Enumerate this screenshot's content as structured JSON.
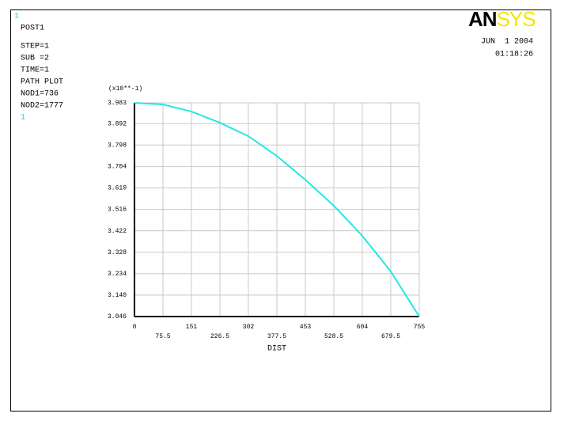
{
  "chart_data": {
    "type": "line",
    "window_labels": [
      "1",
      "1"
    ],
    "info_lines": [
      "POST1",
      "STEP=1",
      "SUB =2",
      "TIME=1",
      "PATH PLOT",
      "NOD1=736",
      "NOD2=1777"
    ],
    "logo": [
      "AN",
      "SYS"
    ],
    "date": "JUN  1 2004",
    "time": "01:18:26",
    "y_multiplier": "(x10**-1)",
    "x_label": "DIST",
    "x": [
      0,
      75.5,
      151,
      226.5,
      302,
      377.5,
      453,
      528.5,
      604,
      679.5,
      755
    ],
    "values": [
      3.983,
      3.976,
      3.945,
      3.896,
      3.837,
      3.75,
      3.646,
      3.532,
      3.4,
      3.244,
      3.046
    ],
    "color": "#22e8e8",
    "xlim": [
      0,
      755
    ],
    "ylim": [
      3.046,
      3.983
    ],
    "xticks": [
      0,
      75.5,
      151,
      226.5,
      302,
      377.5,
      453,
      528.5,
      604,
      679.5,
      755
    ],
    "yticks": [
      3.046,
      {
        "value": 3.14,
        "label": "3.140"
      },
      3.234,
      3.328,
      3.422,
      3.516,
      {
        "value": 3.61,
        "label": "3.610"
      },
      3.704,
      3.798,
      3.892,
      3.983
    ],
    "grid": true
  }
}
